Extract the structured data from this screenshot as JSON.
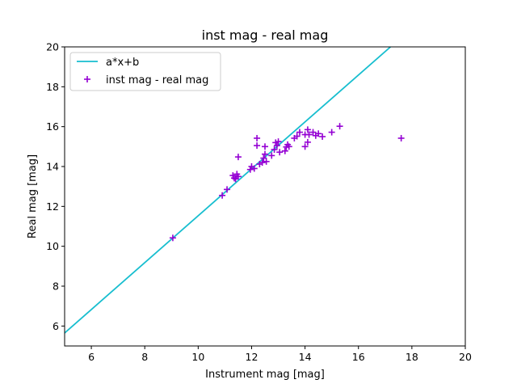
{
  "chart_data": {
    "type": "scatter",
    "title": "inst mag - real mag",
    "xlabel": "Instrument mag [mag]",
    "ylabel": "Real mag [mag]",
    "xlim": [
      5,
      20
    ],
    "ylim": [
      5,
      20
    ],
    "xticks": [
      "6",
      "8",
      "10",
      "12",
      "14",
      "16",
      "18",
      "20"
    ],
    "yticks": [
      "6",
      "8",
      "10",
      "12",
      "14",
      "16",
      "18",
      "20"
    ],
    "grid": false,
    "legend_position": "top-left",
    "series": [
      {
        "name": "a*x+b",
        "type": "line",
        "color": "#17becf",
        "x": [
          5,
          17.2
        ],
        "y": [
          5.65,
          20
        ]
      },
      {
        "name": "inst mag - real mag",
        "type": "scatter",
        "marker": "plus",
        "color": "#9400d3",
        "points": [
          [
            9.05,
            10.42
          ],
          [
            10.9,
            12.55
          ],
          [
            11.08,
            12.85
          ],
          [
            11.3,
            13.55
          ],
          [
            11.35,
            13.42
          ],
          [
            11.4,
            13.38
          ],
          [
            11.45,
            13.62
          ],
          [
            11.5,
            13.5
          ],
          [
            11.5,
            14.48
          ],
          [
            11.95,
            13.85
          ],
          [
            12.0,
            14.0
          ],
          [
            12.1,
            13.9
          ],
          [
            12.2,
            15.42
          ],
          [
            12.2,
            15.05
          ],
          [
            12.3,
            14.12
          ],
          [
            12.4,
            14.2
          ],
          [
            12.45,
            14.42
          ],
          [
            12.5,
            14.62
          ],
          [
            12.5,
            15.0
          ],
          [
            12.55,
            14.25
          ],
          [
            12.75,
            14.55
          ],
          [
            12.85,
            14.85
          ],
          [
            12.9,
            15.2
          ],
          [
            12.95,
            15.05
          ],
          [
            13.0,
            15.25
          ],
          [
            13.05,
            14.72
          ],
          [
            13.25,
            14.78
          ],
          [
            13.3,
            14.98
          ],
          [
            13.35,
            15.1
          ],
          [
            13.4,
            15.0
          ],
          [
            13.6,
            15.42
          ],
          [
            13.7,
            15.52
          ],
          [
            13.8,
            15.72
          ],
          [
            14.0,
            15.6
          ],
          [
            14.0,
            15.0
          ],
          [
            14.1,
            15.85
          ],
          [
            14.1,
            15.22
          ],
          [
            14.15,
            15.6
          ],
          [
            14.3,
            15.72
          ],
          [
            14.4,
            15.55
          ],
          [
            14.5,
            15.65
          ],
          [
            14.65,
            15.5
          ],
          [
            15.0,
            15.72
          ],
          [
            15.3,
            16.02
          ],
          [
            17.6,
            15.42
          ]
        ]
      }
    ]
  }
}
